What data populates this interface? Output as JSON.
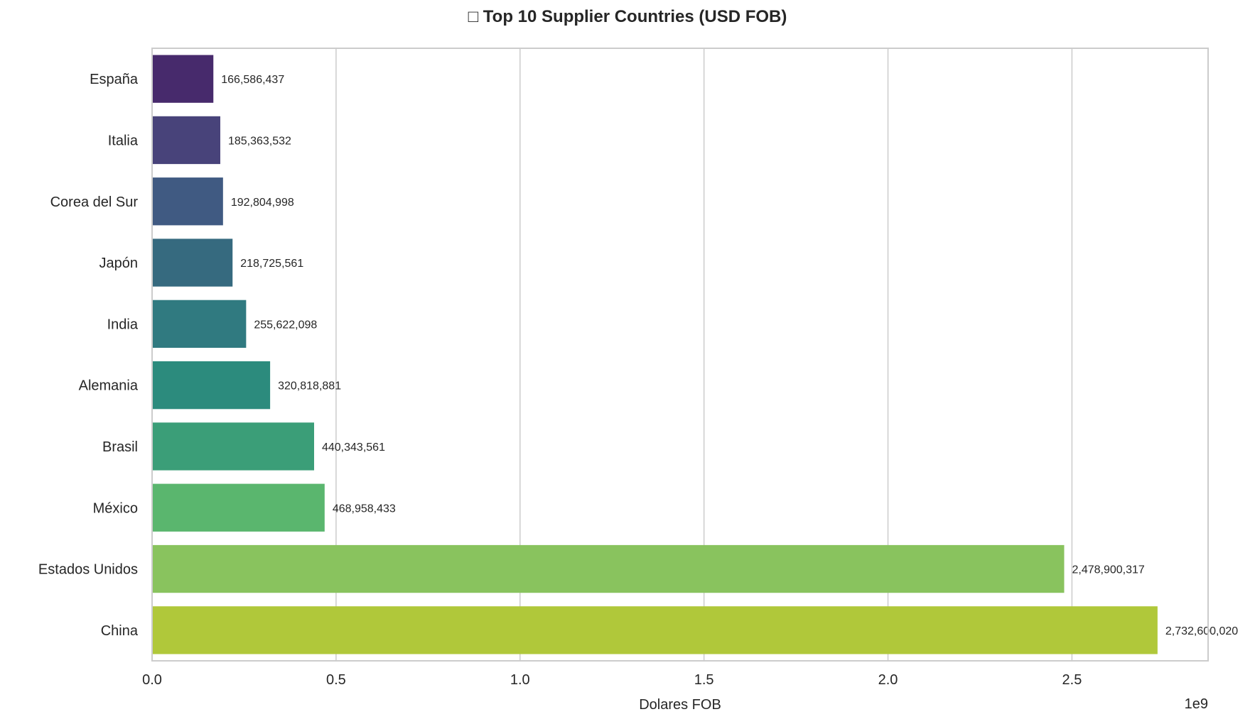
{
  "chart_data": {
    "type": "bar",
    "orientation": "horizontal",
    "title": "□ Top 10 Supplier Countries (USD FOB)",
    "xlabel": "Dolares FOB",
    "ylabel": "",
    "x_scale_label": "1e9",
    "xlim": [
      0,
      2870000000.0
    ],
    "xticks": [
      0,
      500000000.0,
      1000000000.0,
      1500000000.0,
      2000000000.0,
      2500000000.0
    ],
    "xtick_labels": [
      "0.0",
      "0.5",
      "1.0",
      "1.5",
      "2.0",
      "2.5"
    ],
    "grid": "vertical",
    "categories": [
      "España",
      "Italia",
      "Corea del Sur",
      "Japón",
      "India",
      "Alemania",
      "Brasil",
      "México",
      "Estados Unidos",
      "China"
    ],
    "values": [
      166586437,
      185363532,
      192804998,
      218725561,
      255622098,
      320818881,
      440343561,
      468958433,
      2478900317,
      2732600020
    ],
    "data_labels": [
      "166,586,437",
      "185,363,532",
      "192,804,998",
      "218,725,561",
      "255,622,098",
      "320,818,881",
      "440,343,561",
      "468,958,433",
      "2,478,900,317",
      "2,732,600,020"
    ],
    "colors": [
      "#472a6c",
      "#48437a",
      "#405a82",
      "#366a7f",
      "#307a80",
      "#2c8b7d",
      "#3b9e78",
      "#5ab66e",
      "#89c35e",
      "#b0c83a"
    ],
    "palette": "viridis"
  }
}
